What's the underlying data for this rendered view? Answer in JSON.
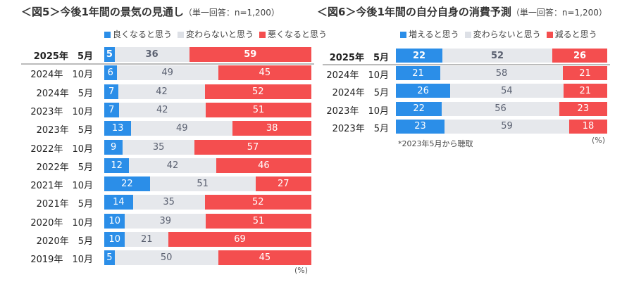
{
  "chart_data": [
    {
      "type": "bar",
      "orientation": "horizontal",
      "stacked": true,
      "title": "＜図5＞今後1年間の景気の見通し",
      "subtitle": "（単一回答：n=1,200）",
      "unit": "(%)",
      "legend_position": "top-right",
      "categories": [
        "2025年　5月",
        "2024年　10月",
        "2024年　5月",
        "2023年　10月",
        "2023年　5月",
        "2022年　10月",
        "2022年　5月",
        "2021年　10月",
        "2021年　5月",
        "2020年　10月",
        "2020年　5月",
        "2019年　10月"
      ],
      "series": [
        {
          "name": "良くなると思う",
          "color": "#2b8ee8",
          "values": [
            5,
            6,
            7,
            7,
            13,
            9,
            12,
            22,
            14,
            10,
            10,
            5
          ]
        },
        {
          "name": "変わらないと思う",
          "color": "#e6e8ec",
          "values": [
            36,
            49,
            42,
            42,
            49,
            35,
            42,
            51,
            35,
            39,
            21,
            50
          ]
        },
        {
          "name": "悪くなると思う",
          "color": "#f44e4f",
          "values": [
            59,
            45,
            52,
            51,
            38,
            57,
            46,
            27,
            52,
            51,
            69,
            45
          ]
        }
      ]
    },
    {
      "type": "bar",
      "orientation": "horizontal",
      "stacked": true,
      "title": "＜図6＞今後1年間の自分自身の消費予測",
      "subtitle": "（単一回答：n=1,200）",
      "unit": "(%)",
      "note": "*2023年5月から聴取",
      "legend_position": "top",
      "categories": [
        "2025年　5月",
        "2024年　10月",
        "2024年　5月",
        "2023年　10月",
        "2023年　5月"
      ],
      "series": [
        {
          "name": "増えると思う",
          "color": "#2b8ee8",
          "values": [
            22,
            21,
            26,
            22,
            23
          ]
        },
        {
          "name": "変わらないと思う",
          "color": "#e6e8ec",
          "values": [
            52,
            58,
            54,
            56,
            59
          ]
        },
        {
          "name": "減ると思う",
          "color": "#f44e4f",
          "values": [
            26,
            21,
            21,
            23,
            18
          ]
        }
      ]
    }
  ]
}
